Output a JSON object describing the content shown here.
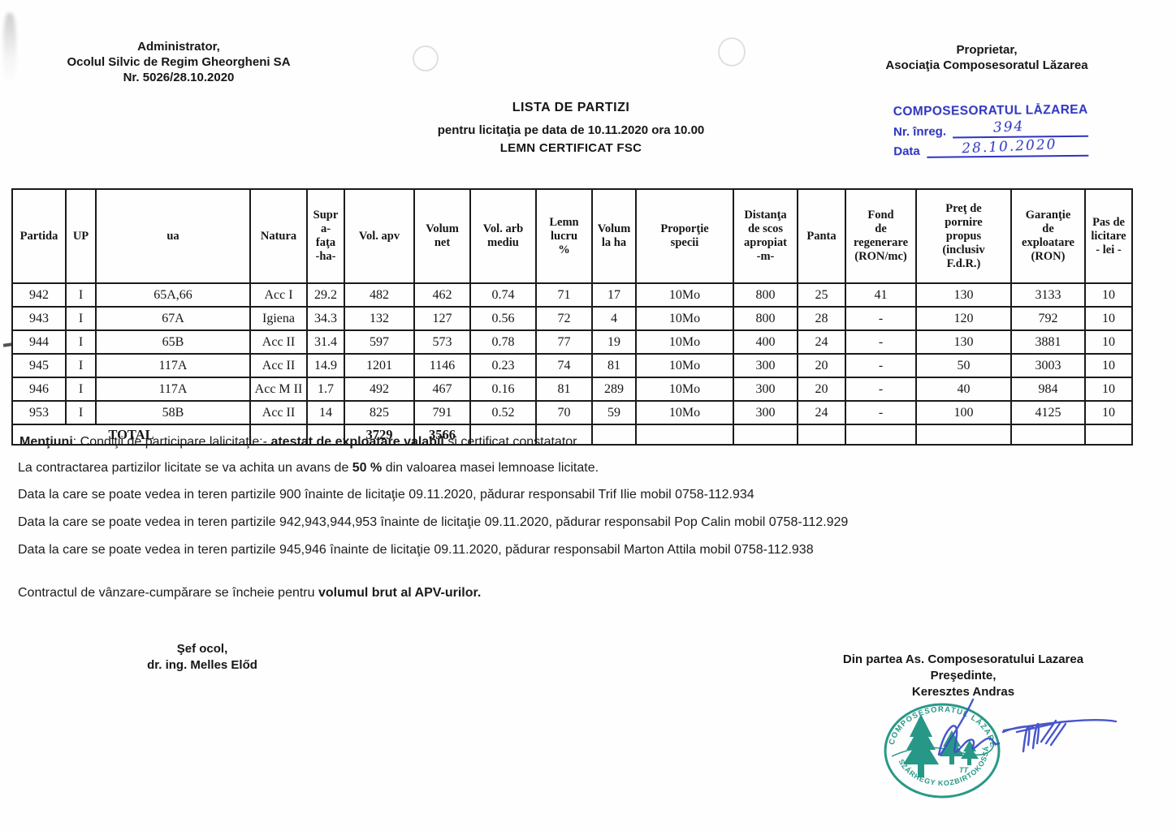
{
  "header": {
    "admin": {
      "line1": "Administrator,",
      "line2": "Ocolul Silvic de Regim Gheorgheni SA",
      "line3": "Nr. 5026/28.10.2020"
    },
    "owner": {
      "line1": "Proprietar,",
      "line2": "Asociaţia Composesoratul Lăzarea"
    }
  },
  "title": {
    "line1": "LISTA DE PARTIZI",
    "line2": "pentru licitaţia pe data de 10.11.2020 ora 10.00",
    "line3": "LEMN CERTIFICAT FSC"
  },
  "registry_stamp": {
    "org": "COMPOSESORATUL LĂZAREA",
    "nr_label": "Nr. înreg.",
    "nr_value": "394",
    "date_label": "Data",
    "date_value": "28.10.2020",
    "color": "#2c34bf"
  },
  "table": {
    "columns": [
      "Partida",
      "UP",
      "ua",
      "Natura",
      "Supr\na-\nfaţa\n-ha-",
      "Vol. apv",
      "Volum\nnet",
      "Vol. arb\nmediu",
      "Lemn\nlucru\n%",
      "Volum\nla ha",
      "Proporţie\nspecii",
      "Distanţa\nde scos\napropiat\n-m-",
      "Panta",
      "Fond\nde\nregenerare\n(RON/mc)",
      "Preţ de\npornire\npropus\n(inclusiv\nF.d.R.)",
      "Garanţie\nde\nexploatare\n(RON)",
      "Pas de\nlicitare\n- lei -"
    ],
    "rows": [
      [
        "942",
        "I",
        "65A,66",
        "Acc I",
        "29.2",
        "482",
        "462",
        "0.74",
        "71",
        "17",
        "10Mo",
        "800",
        "25",
        "41",
        "130",
        "3133",
        "10"
      ],
      [
        "943",
        "I",
        "67A",
        "Igiena",
        "34.3",
        "132",
        "127",
        "0.56",
        "72",
        "4",
        "10Mo",
        "800",
        "28",
        "-",
        "120",
        "792",
        "10"
      ],
      [
        "944",
        "I",
        "65B",
        "Acc II",
        "31.4",
        "597",
        "573",
        "0.78",
        "77",
        "19",
        "10Mo",
        "400",
        "24",
        "-",
        "130",
        "3881",
        "10"
      ],
      [
        "945",
        "I",
        "117A",
        "Acc II",
        "14.9",
        "1201",
        "1146",
        "0.23",
        "74",
        "81",
        "10Mo",
        "300",
        "20",
        "-",
        "50",
        "3003",
        "10"
      ],
      [
        "946",
        "I",
        "117A",
        "Acc M II",
        "1.7",
        "492",
        "467",
        "0.16",
        "81",
        "289",
        "10Mo",
        "300",
        "20",
        "-",
        "40",
        "984",
        "10"
      ],
      [
        "953",
        "I",
        "58B",
        "Acc II",
        "14",
        "825",
        "791",
        "0.52",
        "70",
        "59",
        "10Mo",
        "300",
        "24",
        "-",
        "100",
        "4125",
        "10"
      ]
    ],
    "total_label": "TOTAL",
    "total_vol_apv": "3729",
    "total_volum_net": "3566"
  },
  "notes": {
    "mentiuni_bold": "Menţiuni",
    "mentiuni_text1": ": Condiţii de participare lalicitaţie:- ",
    "mentiuni_bold2": "atestat de exploatare valabil",
    "mentiuni_text2": " si certificat constatator",
    "avans_text1": "La contractarea partizilor licitate se va achita un avans de ",
    "avans_bold": "50 %",
    "avans_text2": " din valoarea masei lemnoase licitate.",
    "visits": [
      "Data la care se poate vedea in teren partizile 900 înainte de licitaţie 09.11.2020, pădurar responsabil Trif Ilie  mobil 0758-112.934",
      "Data la care se poate vedea in teren partizile 942,943,944,953 înainte de licitaţie 09.11.2020, pădurar responsabil Pop Calin  mobil 0758-112.929",
      "Data la care se poate vedea in teren partizile 945,946 înainte de licitaţie 09.11.2020, pădurar responsabil Marton Attila  mobil 0758-112.938"
    ],
    "contract_text": "Contractul de vânzare-cumpărare se încheie pentru ",
    "contract_bold": "volumul  brut al APV-urilor."
  },
  "signatures": {
    "left": {
      "line1": "Şef ocol,",
      "line2": "dr. ing. Melles Előd"
    },
    "right": {
      "line1": "Din partea As. Composesoratului Lazarea",
      "line2": "Preşedinte,",
      "line3": "Keresztes Andras"
    }
  },
  "round_stamp": {
    "top_text": "COMPOSESORATUL LĂZAREA",
    "bottom_text": "SZÁRHEGY KOZBIRTOKOSSÁG",
    "center_mark": "TT",
    "color": "#15907d"
  }
}
